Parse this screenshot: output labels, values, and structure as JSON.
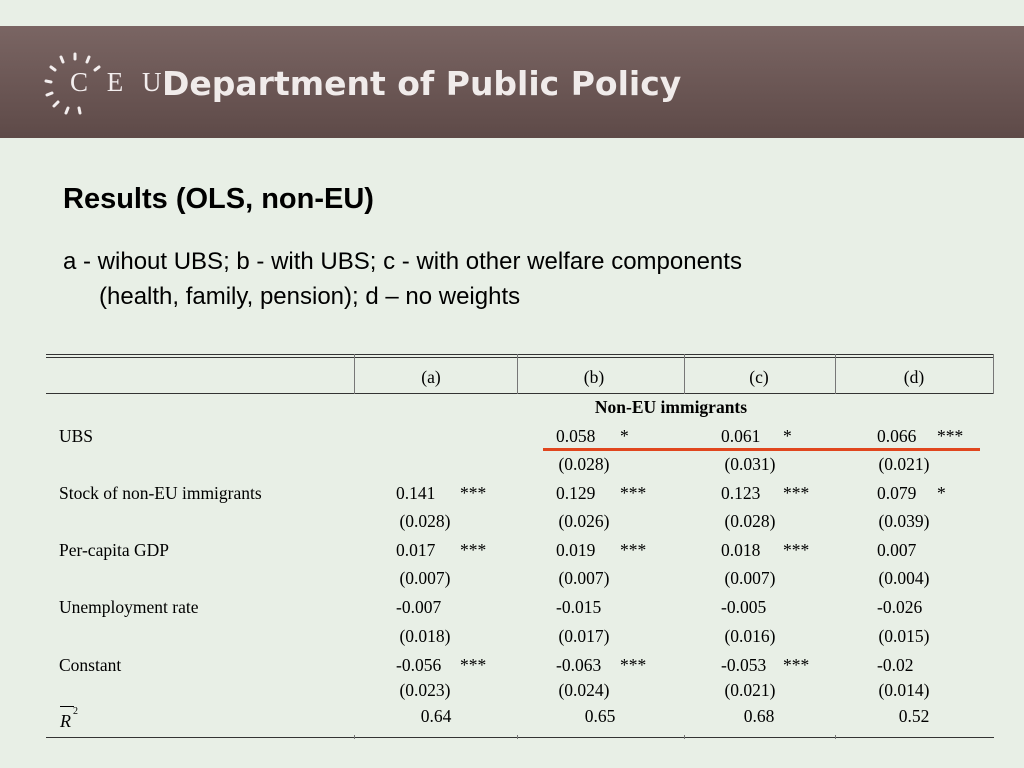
{
  "header": {
    "logo_text": "C E U",
    "department": "Department of Public Policy"
  },
  "slide": {
    "title": "Results (OLS, non-EU)",
    "subtitle_line1": "a - wihout UBS; b - with UBS; c - with other welfare components",
    "subtitle_line2": "(health, family, pension); d – no weights"
  },
  "table": {
    "columns": [
      "(a)",
      "(b)",
      "(c)",
      "(d)"
    ],
    "group_header": "Non-EU immigrants",
    "rows": [
      {
        "label": "UBS",
        "coef": [
          "",
          "0.058",
          "0.061",
          "0.066"
        ],
        "stars": [
          "",
          "*",
          "*",
          "***"
        ],
        "se": [
          "",
          "(0.028)",
          "(0.031)",
          "(0.021)"
        ]
      },
      {
        "label": "Stock of non-EU immigrants",
        "coef": [
          "0.141",
          "0.129",
          "0.123",
          "0.079"
        ],
        "stars": [
          "***",
          "***",
          "***",
          "*"
        ],
        "se": [
          "(0.028)",
          "(0.026)",
          "(0.028)",
          "(0.039)"
        ]
      },
      {
        "label": "Per-capita GDP",
        "coef": [
          "0.017",
          "0.019",
          "0.018",
          "0.007"
        ],
        "stars": [
          "***",
          "***",
          "***",
          ""
        ],
        "se": [
          "(0.007)",
          "(0.007)",
          "(0.007)",
          "(0.004)"
        ]
      },
      {
        "label": "Unemployment rate",
        "coef": [
          "-0.007",
          "-0.015",
          "-0.005",
          "-0.026"
        ],
        "stars": [
          "",
          "",
          "",
          ""
        ],
        "se": [
          "(0.018)",
          "(0.017)",
          "(0.016)",
          "(0.015)"
        ]
      },
      {
        "label": "Constant",
        "coef": [
          "-0.056",
          "-0.063",
          "-0.053",
          "-0.02"
        ],
        "stars": [
          "***",
          "***",
          "***",
          ""
        ],
        "se": [
          "(0.023)",
          "(0.024)",
          "(0.021)",
          "(0.014)"
        ]
      }
    ],
    "r2_label": "R",
    "r2_sup": "2",
    "r2": [
      "0.64",
      "0.65",
      "0.68",
      "0.52"
    ]
  },
  "colors": {
    "banner": "#6b5654",
    "background": "#e8efe6",
    "highlight_line": "#e0461e"
  }
}
